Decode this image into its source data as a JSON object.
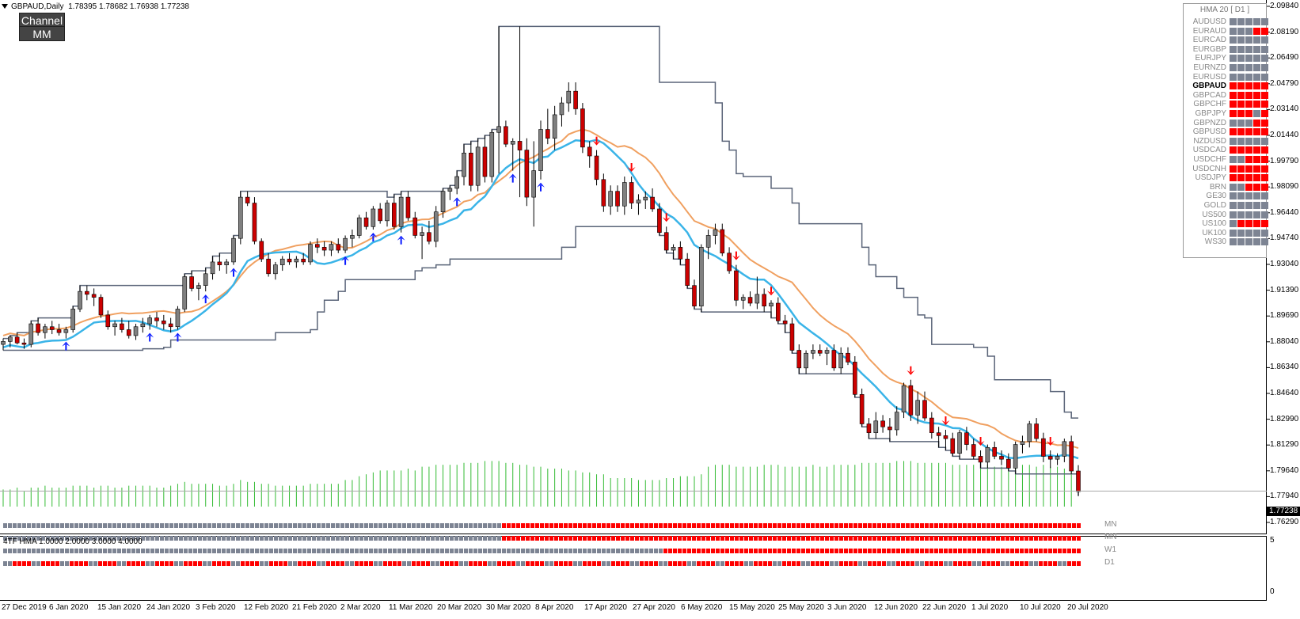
{
  "header": {
    "symbol": "GBPAUD,Daily",
    "ohlc": "1.78395 1.78682 1.76938 1.77238"
  },
  "buttons": {
    "channel": "Channel",
    "mm": "MM"
  },
  "hma_panel": {
    "title": "HMA 20 [ D1 ]",
    "symbols": [
      {
        "name": "AUDUSD",
        "cells": [
          "g",
          "g",
          "g",
          "g",
          "g"
        ]
      },
      {
        "name": "EURAUD",
        "cells": [
          "g",
          "g",
          "g",
          "r",
          "r"
        ]
      },
      {
        "name": "EURCAD",
        "cells": [
          "g",
          "g",
          "g",
          "g",
          "g"
        ]
      },
      {
        "name": "EURGBP",
        "cells": [
          "g",
          "g",
          "g",
          "g",
          "g"
        ]
      },
      {
        "name": "EURJPY",
        "cells": [
          "g",
          "g",
          "g",
          "g",
          "g"
        ]
      },
      {
        "name": "EURNZD",
        "cells": [
          "g",
          "g",
          "g",
          "g",
          "g"
        ]
      },
      {
        "name": "EURUSD",
        "cells": [
          "g",
          "g",
          "g",
          "g",
          "g"
        ]
      },
      {
        "name": "GBPAUD",
        "cells": [
          "r",
          "r",
          "r",
          "r",
          "r"
        ],
        "active": true
      },
      {
        "name": "GBPCAD",
        "cells": [
          "r",
          "r",
          "r",
          "r",
          "r"
        ]
      },
      {
        "name": "GBPCHF",
        "cells": [
          "r",
          "r",
          "r",
          "r",
          "r"
        ]
      },
      {
        "name": "GBPJPY",
        "cells": [
          "r",
          "r",
          "r",
          "g",
          "r"
        ]
      },
      {
        "name": "GBPNZD",
        "cells": [
          "g",
          "g",
          "g",
          "r",
          "r"
        ]
      },
      {
        "name": "GBPUSD",
        "cells": [
          "r",
          "r",
          "r",
          "r",
          "r"
        ]
      },
      {
        "name": "NZDUSD",
        "cells": [
          "g",
          "g",
          "g",
          "g",
          "g"
        ]
      },
      {
        "name": "USDCAD",
        "cells": [
          "r",
          "r",
          "r",
          "r",
          "r"
        ]
      },
      {
        "name": "USDCHF",
        "cells": [
          "g",
          "g",
          "r",
          "r",
          "r"
        ]
      },
      {
        "name": "USDCNH",
        "cells": [
          "r",
          "r",
          "r",
          "r",
          "r"
        ]
      },
      {
        "name": "USDJPY",
        "cells": [
          "r",
          "r",
          "r",
          "r",
          "r"
        ]
      },
      {
        "name": "BRN",
        "cells": [
          "g",
          "g",
          "r",
          "r",
          "r"
        ]
      },
      {
        "name": "GE30",
        "cells": [
          "g",
          "g",
          "g",
          "g",
          "g"
        ]
      },
      {
        "name": "GOLD",
        "cells": [
          "g",
          "g",
          "g",
          "g",
          "g"
        ]
      },
      {
        "name": "US500",
        "cells": [
          "g",
          "g",
          "g",
          "g",
          "g"
        ]
      },
      {
        "name": "US100",
        "cells": [
          "g",
          "r",
          "r",
          "r",
          "r"
        ]
      },
      {
        "name": "UK100",
        "cells": [
          "g",
          "g",
          "g",
          "g",
          "g"
        ]
      },
      {
        "name": "WS30",
        "cells": [
          "g",
          "g",
          "g",
          "g",
          "g"
        ]
      }
    ]
  },
  "price_axis": [
    "2.09840",
    "2.08190",
    "2.06490",
    "2.04790",
    "2.03140",
    "2.01440",
    "1.99790",
    "1.98090",
    "1.96440",
    "1.94740",
    "1.93040",
    "1.91390",
    "1.89690",
    "1.88040",
    "1.86340",
    "1.84640",
    "1.82990",
    "1.81290",
    "1.79640",
    "1.77940",
    "1.76290"
  ],
  "current_price": "1.77238",
  "date_axis": [
    "27 Dec 2019",
    "6 Jan 2020",
    "15 Jan 2020",
    "24 Jan 2020",
    "3 Feb 2020",
    "12 Feb 2020",
    "21 Feb 2020",
    "2 Mar 2020",
    "11 Mar 2020",
    "20 Mar 2020",
    "30 Mar 2020",
    "8 Apr 2020",
    "17 Apr 2020",
    "27 Apr 2020",
    "6 May 2020",
    "15 May 2020",
    "25 May 2020",
    "3 Jun 2020",
    "12 Jun 2020",
    "22 Jun 2020",
    "1 Jul 2020",
    "10 Jul 2020",
    "20 Jul 2020"
  ],
  "sub_window": {
    "label": "4TF HMA 1.0000 2.0000 3.0000 4.0000",
    "rows": [
      "MN",
      "MN",
      "W1",
      "D1"
    ],
    "axis_top": "5",
    "axis_bottom": "0"
  },
  "colors": {
    "bull": "#808080",
    "bear": "#cc0000",
    "hma_fast": "#3ab4e8",
    "hma_slow": "#f0a060",
    "channel": "#5a6478",
    "volume": "#33bb33",
    "arrow_up": "#0a1aff",
    "arrow_down": "#ff0000",
    "tf_red": "#ff0000",
    "tf_gray": "#7d8493"
  },
  "chart_data": {
    "type": "candlestick",
    "ylim": [
      1.7629,
      2.0984
    ],
    "bars": [
      [
        1.872,
        1.876,
        1.868,
        1.874
      ],
      [
        1.874,
        1.878,
        1.87,
        1.877
      ],
      [
        1.877,
        1.88,
        1.872,
        1.873
      ],
      [
        1.873,
        1.876,
        1.869,
        1.872
      ],
      [
        1.872,
        1.888,
        1.87,
        1.886
      ],
      [
        1.886,
        1.89,
        1.878,
        1.88
      ],
      [
        1.88,
        1.886,
        1.876,
        1.884
      ],
      [
        1.884,
        1.888,
        1.879,
        1.882
      ],
      [
        1.882,
        1.886,
        1.878,
        1.88
      ],
      [
        1.88,
        1.884,
        1.876,
        1.882
      ],
      [
        1.882,
        1.898,
        1.88,
        1.896
      ],
      [
        1.896,
        1.912,
        1.894,
        1.908
      ],
      [
        1.908,
        1.912,
        1.902,
        1.906
      ],
      [
        1.906,
        1.91,
        1.898,
        1.904
      ],
      [
        1.904,
        1.906,
        1.89,
        1.892
      ],
      [
        1.892,
        1.895,
        1.882,
        1.884
      ],
      [
        1.884,
        1.888,
        1.878,
        1.886
      ],
      [
        1.886,
        1.89,
        1.88,
        1.882
      ],
      [
        1.882,
        1.888,
        1.876,
        1.878
      ],
      [
        1.878,
        1.886,
        1.875,
        1.884
      ],
      [
        1.884,
        1.89,
        1.88,
        1.886
      ],
      [
        1.886,
        1.892,
        1.882,
        1.89
      ],
      [
        1.89,
        1.894,
        1.884,
        1.888
      ],
      [
        1.888,
        1.892,
        1.882,
        1.886
      ],
      [
        1.886,
        1.89,
        1.88,
        1.884
      ],
      [
        1.884,
        1.898,
        1.882,
        1.896
      ],
      [
        1.896,
        1.92,
        1.894,
        1.918
      ],
      [
        1.918,
        1.922,
        1.908,
        1.91
      ],
      [
        1.91,
        1.914,
        1.902,
        1.912
      ],
      [
        1.912,
        1.924,
        1.908,
        1.92
      ],
      [
        1.92,
        1.932,
        1.916,
        1.928
      ],
      [
        1.928,
        1.934,
        1.922,
        1.926
      ],
      [
        1.926,
        1.93,
        1.92,
        1.928
      ],
      [
        1.928,
        1.946,
        1.926,
        1.944
      ],
      [
        1.944,
        1.976,
        1.94,
        1.972
      ],
      [
        1.972,
        1.976,
        1.966,
        1.968
      ],
      [
        1.968,
        1.972,
        1.94,
        1.942
      ],
      [
        1.942,
        1.944,
        1.928,
        1.93
      ],
      [
        1.93,
        1.934,
        1.918,
        1.92
      ],
      [
        1.92,
        1.928,
        1.916,
        1.926
      ],
      [
        1.926,
        1.932,
        1.922,
        1.93
      ],
      [
        1.93,
        1.934,
        1.926,
        1.928
      ],
      [
        1.928,
        1.932,
        1.924,
        1.93
      ],
      [
        1.93,
        1.934,
        1.926,
        1.928
      ],
      [
        1.928,
        1.942,
        1.926,
        1.94
      ],
      [
        1.94,
        1.944,
        1.934,
        1.938
      ],
      [
        1.938,
        1.942,
        1.932,
        1.936
      ],
      [
        1.936,
        1.942,
        1.932,
        1.94
      ],
      [
        1.94,
        1.944,
        1.934,
        1.936
      ],
      [
        1.936,
        1.946,
        1.934,
        1.944
      ],
      [
        1.944,
        1.95,
        1.938,
        1.946
      ],
      [
        1.946,
        1.96,
        1.944,
        1.958
      ],
      [
        1.958,
        1.962,
        1.95,
        1.952
      ],
      [
        1.952,
        1.966,
        1.95,
        1.964
      ],
      [
        1.964,
        1.968,
        1.954,
        1.956
      ],
      [
        1.956,
        1.97,
        1.952,
        1.968
      ],
      [
        1.968,
        1.974,
        1.95,
        1.952
      ],
      [
        1.952,
        1.976,
        1.948,
        1.972
      ],
      [
        1.972,
        1.976,
        1.956,
        1.958
      ],
      [
        1.958,
        1.962,
        1.944,
        1.946
      ],
      [
        1.946,
        1.952,
        1.93,
        1.948
      ],
      [
        1.948,
        1.956,
        1.94,
        1.942
      ],
      [
        1.942,
        1.966,
        1.938,
        1.962
      ],
      [
        1.962,
        1.978,
        1.958,
        1.976
      ],
      [
        1.976,
        1.98,
        1.97,
        1.978
      ],
      [
        1.978,
        1.99,
        1.974,
        1.986
      ],
      [
        1.986,
        2.008,
        1.98,
        2.002
      ],
      [
        2.002,
        2.01,
        1.976,
        1.98
      ],
      [
        1.98,
        2.012,
        1.976,
        2.006
      ],
      [
        2.006,
        2.014,
        1.982,
        1.986
      ],
      [
        1.986,
        2.018,
        1.982,
        2.016
      ],
      [
        2.016,
        2.088,
        1.988,
        2.02
      ],
      [
        2.02,
        2.024,
        2.006,
        2.008
      ],
      [
        2.008,
        2.012,
        1.99,
        2.01
      ],
      [
        2.01,
        2.088,
        1.972,
        2.004
      ],
      [
        2.004,
        2.012,
        1.966,
        1.972
      ],
      [
        1.972,
        2.01,
        1.952,
        1.99
      ],
      [
        1.99,
        2.024,
        1.984,
        2.018
      ],
      [
        2.018,
        2.032,
        2.008,
        2.012
      ],
      [
        2.012,
        2.034,
        2.004,
        2.028
      ],
      [
        2.028,
        2.04,
        2.02,
        2.036
      ],
      [
        2.036,
        2.05,
        2.03,
        2.044
      ],
      [
        2.044,
        2.05,
        2.028,
        2.032
      ],
      [
        2.032,
        2.036,
        2.002,
        2.006
      ],
      [
        2.006,
        2.01,
        1.992,
        2.0
      ],
      [
        2.0,
        2.004,
        1.98,
        1.984
      ],
      [
        1.984,
        1.988,
        1.962,
        1.966
      ],
      [
        1.966,
        1.98,
        1.96,
        1.976
      ],
      [
        1.976,
        1.98,
        1.962,
        1.966
      ],
      [
        1.966,
        1.986,
        1.96,
        1.982
      ],
      [
        1.982,
        1.986,
        1.964,
        1.968
      ],
      [
        1.968,
        1.974,
        1.96,
        1.97
      ],
      [
        1.97,
        1.976,
        1.964,
        1.972
      ],
      [
        1.972,
        1.978,
        1.962,
        1.964
      ],
      [
        1.964,
        1.968,
        1.946,
        1.948
      ],
      [
        1.948,
        1.952,
        1.934,
        1.936
      ],
      [
        1.936,
        1.94,
        1.93,
        1.938
      ],
      [
        1.938,
        1.942,
        1.926,
        1.93
      ],
      [
        1.93,
        1.934,
        1.91,
        1.912
      ],
      [
        1.912,
        1.916,
        1.896,
        1.898
      ],
      [
        1.898,
        1.94,
        1.894,
        1.938
      ],
      [
        1.938,
        1.95,
        1.93,
        1.946
      ],
      [
        1.946,
        1.954,
        1.94,
        1.95
      ],
      [
        1.95,
        1.954,
        1.932,
        1.934
      ],
      [
        1.934,
        1.938,
        1.92,
        1.922
      ],
      [
        1.922,
        1.926,
        1.898,
        1.902
      ],
      [
        1.902,
        1.906,
        1.896,
        1.904
      ],
      [
        1.904,
        1.908,
        1.898,
        1.9
      ],
      [
        1.9,
        1.918,
        1.896,
        1.906
      ],
      [
        1.906,
        1.91,
        1.894,
        1.898
      ],
      [
        1.898,
        1.902,
        1.89,
        1.9
      ],
      [
        1.9,
        1.904,
        1.886,
        1.888
      ],
      [
        1.888,
        1.892,
        1.88,
        1.886
      ],
      [
        1.886,
        1.89,
        1.866,
        1.868
      ],
      [
        1.868,
        1.872,
        1.852,
        1.856
      ],
      [
        1.856,
        1.868,
        1.852,
        1.866
      ],
      [
        1.866,
        1.872,
        1.862,
        1.868
      ],
      [
        1.868,
        1.872,
        1.864,
        1.866
      ],
      [
        1.866,
        1.87,
        1.858,
        1.868
      ],
      [
        1.868,
        1.872,
        1.854,
        1.856
      ],
      [
        1.856,
        1.87,
        1.852,
        1.866
      ],
      [
        1.866,
        1.87,
        1.858,
        1.86
      ],
      [
        1.86,
        1.864,
        1.836,
        1.838
      ],
      [
        1.838,
        1.842,
        1.816,
        1.818
      ],
      [
        1.818,
        1.822,
        1.808,
        1.812
      ],
      [
        1.812,
        1.826,
        1.808,
        1.82
      ],
      [
        1.82,
        1.824,
        1.812,
        1.816
      ],
      [
        1.816,
        1.822,
        1.806,
        1.814
      ],
      [
        1.814,
        1.83,
        1.81,
        1.826
      ],
      [
        1.826,
        1.846,
        1.822,
        1.844
      ],
      [
        1.844,
        1.848,
        1.82,
        1.824
      ],
      [
        1.824,
        1.84,
        1.818,
        1.834
      ],
      [
        1.834,
        1.84,
        1.82,
        1.822
      ],
      [
        1.822,
        1.826,
        1.808,
        1.812
      ],
      [
        1.812,
        1.816,
        1.802,
        1.81
      ],
      [
        1.81,
        1.814,
        1.8,
        1.808
      ],
      [
        1.808,
        1.812,
        1.796,
        1.798
      ],
      [
        1.798,
        1.814,
        1.794,
        1.812
      ],
      [
        1.812,
        1.816,
        1.8,
        1.804
      ],
      [
        1.804,
        1.808,
        1.794,
        1.796
      ],
      [
        1.796,
        1.8,
        1.788,
        1.792
      ],
      [
        1.792,
        1.804,
        1.788,
        1.802
      ],
      [
        1.802,
        1.806,
        1.794,
        1.796
      ],
      [
        1.796,
        1.8,
        1.79,
        1.794
      ],
      [
        1.794,
        1.798,
        1.786,
        1.788
      ],
      [
        1.788,
        1.806,
        1.784,
        1.804
      ],
      [
        1.804,
        1.81,
        1.798,
        1.806
      ],
      [
        1.806,
        1.82,
        1.802,
        1.818
      ],
      [
        1.818,
        1.822,
        1.806,
        1.808
      ],
      [
        1.808,
        1.812,
        1.792,
        1.796
      ],
      [
        1.796,
        1.8,
        1.788,
        1.794
      ],
      [
        1.794,
        1.798,
        1.79,
        1.796
      ],
      [
        1.796,
        1.808,
        1.792,
        1.806
      ],
      [
        1.806,
        1.81,
        1.784,
        1.786
      ],
      [
        1.786,
        1.79,
        1.769,
        1.772
      ]
    ],
    "volume": [
      0.18,
      0.18,
      0.2,
      0.16,
      0.2,
      0.2,
      0.22,
      0.2,
      0.2,
      0.2,
      0.22,
      0.22,
      0.22,
      0.2,
      0.22,
      0.22,
      0.2,
      0.2,
      0.22,
      0.22,
      0.22,
      0.22,
      0.2,
      0.2,
      0.22,
      0.24,
      0.26,
      0.24,
      0.24,
      0.24,
      0.24,
      0.22,
      0.22,
      0.24,
      0.28,
      0.26,
      0.26,
      0.24,
      0.24,
      0.22,
      0.22,
      0.22,
      0.22,
      0.22,
      0.24,
      0.24,
      0.24,
      0.24,
      0.24,
      0.28,
      0.28,
      0.32,
      0.34,
      0.36,
      0.38,
      0.38,
      0.38,
      0.38,
      0.4,
      0.38,
      0.42,
      0.42,
      0.44,
      0.44,
      0.44,
      0.44,
      0.46,
      0.46,
      0.46,
      0.48,
      0.48,
      0.48,
      0.46,
      0.46,
      0.44,
      0.44,
      0.42,
      0.42,
      0.4,
      0.4,
      0.4,
      0.38,
      0.38,
      0.36,
      0.36,
      0.34,
      0.34,
      0.3,
      0.3,
      0.3,
      0.3,
      0.28,
      0.28,
      0.28,
      0.28,
      0.3,
      0.3,
      0.32,
      0.32,
      0.32,
      0.34,
      0.42,
      0.44,
      0.44,
      0.44,
      0.42,
      0.42,
      0.42,
      0.42,
      0.44,
      0.44,
      0.44,
      0.42,
      0.42,
      0.42,
      0.42,
      0.44,
      0.42,
      0.42,
      0.44,
      0.44,
      0.44,
      0.44,
      0.46,
      0.46,
      0.46,
      0.46,
      0.46,
      0.48,
      0.48,
      0.48,
      0.46,
      0.46,
      0.46,
      0.46,
      0.46,
      0.44,
      0.44,
      0.44,
      0.44,
      0.44,
      0.44,
      0.42,
      0.42,
      0.42,
      0.44,
      0.44,
      0.44,
      0.42,
      0.44,
      0.42,
      0.42,
      0.4,
      0.4
    ]
  }
}
